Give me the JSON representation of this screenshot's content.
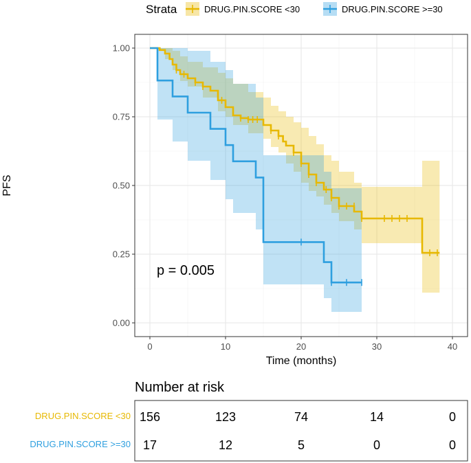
{
  "chart_data": {
    "type": "km-survival",
    "legend": {
      "title": "Strata",
      "entries": [
        {
          "label": "DRUG.PIN.SCORE <30",
          "color": "#E7B800"
        },
        {
          "label": "DRUG.PIN.SCORE >=30",
          "color": "#2E9FDF"
        }
      ]
    },
    "xlabel": "Time (months)",
    "ylabel": "PFS",
    "xlim": [
      -2,
      42
    ],
    "ylim": [
      -0.05,
      1.05
    ],
    "xticks": [
      0,
      10,
      20,
      30,
      40
    ],
    "xtick_labels": [
      "0",
      "10",
      "20",
      "30",
      "40"
    ],
    "yticks": [
      0,
      0.25,
      0.5,
      0.75,
      1.0
    ],
    "ytick_labels": [
      "0.00",
      "0.25",
      "0.50",
      "0.75",
      "1.00"
    ],
    "pvalue_text": "p = 0.005",
    "series": [
      {
        "name": "DRUG.PIN.SCORE <30",
        "color": "#E7B800",
        "steps": [
          [
            0,
            1.0
          ],
          [
            1.3,
            0.993
          ],
          [
            2,
            0.98
          ],
          [
            2.6,
            0.96
          ],
          [
            3,
            0.94
          ],
          [
            3.5,
            0.92
          ],
          [
            4,
            0.905
          ],
          [
            5,
            0.89
          ],
          [
            6,
            0.875
          ],
          [
            7,
            0.86
          ],
          [
            8,
            0.845
          ],
          [
            9,
            0.81
          ],
          [
            10,
            0.785
          ],
          [
            11,
            0.755
          ],
          [
            12,
            0.745
          ],
          [
            13,
            0.74
          ],
          [
            15,
            0.72
          ],
          [
            16,
            0.7
          ],
          [
            17,
            0.68
          ],
          [
            17.6,
            0.66
          ],
          [
            18,
            0.645
          ],
          [
            19,
            0.62
          ],
          [
            20,
            0.58
          ],
          [
            21,
            0.54
          ],
          [
            22,
            0.51
          ],
          [
            23,
            0.485
          ],
          [
            24,
            0.455
          ],
          [
            25,
            0.425
          ],
          [
            27,
            0.405
          ],
          [
            28,
            0.38
          ],
          [
            36,
            0.255
          ],
          [
            38.3,
            0.255
          ]
        ],
        "ci_steps": [
          [
            0,
            1.0,
            1.0
          ],
          [
            1,
            0.99,
            1.0
          ],
          [
            2,
            0.96,
            1.0
          ],
          [
            3,
            0.92,
            0.99
          ],
          [
            4,
            0.88,
            0.97
          ],
          [
            5,
            0.86,
            0.95
          ],
          [
            7,
            0.82,
            0.93
          ],
          [
            9,
            0.77,
            0.91
          ],
          [
            10,
            0.75,
            0.89
          ],
          [
            11,
            0.72,
            0.87
          ],
          [
            13,
            0.69,
            0.84
          ],
          [
            15,
            0.67,
            0.82
          ],
          [
            16,
            0.64,
            0.79
          ],
          [
            17,
            0.62,
            0.77
          ],
          [
            18,
            0.58,
            0.75
          ],
          [
            19,
            0.55,
            0.73
          ],
          [
            20,
            0.51,
            0.71
          ],
          [
            21,
            0.48,
            0.68
          ],
          [
            22,
            0.46,
            0.65
          ],
          [
            23,
            0.43,
            0.61
          ],
          [
            24,
            0.4,
            0.59
          ],
          [
            25,
            0.37,
            0.55
          ],
          [
            27,
            0.34,
            0.51
          ],
          [
            28,
            0.29,
            0.495
          ],
          [
            36,
            0.11,
            0.59
          ],
          [
            38.3,
            0.11,
            0.59
          ]
        ],
        "censors": [
          [
            3.5,
            0.92
          ],
          [
            4.5,
            0.905
          ],
          [
            6,
            0.875
          ],
          [
            7,
            0.86
          ],
          [
            9.5,
            0.81
          ],
          [
            12,
            0.745
          ],
          [
            13,
            0.74
          ],
          [
            13.6,
            0.74
          ],
          [
            14.2,
            0.74
          ],
          [
            16,
            0.7
          ],
          [
            17,
            0.68
          ],
          [
            19,
            0.62
          ],
          [
            20,
            0.58
          ],
          [
            21,
            0.54
          ],
          [
            22,
            0.51
          ],
          [
            23.3,
            0.485
          ],
          [
            24,
            0.455
          ],
          [
            25,
            0.425
          ],
          [
            26,
            0.425
          ],
          [
            27,
            0.425
          ],
          [
            28,
            0.38
          ],
          [
            31,
            0.38
          ],
          [
            32,
            0.38
          ],
          [
            33,
            0.38
          ],
          [
            34,
            0.38
          ],
          [
            37,
            0.255
          ],
          [
            38,
            0.255
          ]
        ]
      },
      {
        "name": "DRUG.PIN.SCORE >=30",
        "color": "#2E9FDF",
        "steps": [
          [
            0,
            1.0
          ],
          [
            1,
            0.882
          ],
          [
            3,
            0.824
          ],
          [
            5,
            0.765
          ],
          [
            8,
            0.706
          ],
          [
            10,
            0.647
          ],
          [
            11,
            0.588
          ],
          [
            14,
            0.529
          ],
          [
            15,
            0.294
          ],
          [
            23,
            0.221
          ],
          [
            24,
            0.147
          ],
          [
            28,
            0.147
          ]
        ],
        "ci_steps": [
          [
            0,
            1.0,
            1.0
          ],
          [
            1,
            0.74,
            1.0
          ],
          [
            3,
            0.66,
            1.0
          ],
          [
            5,
            0.59,
            0.99
          ],
          [
            8,
            0.52,
            0.95
          ],
          [
            10,
            0.45,
            0.92
          ],
          [
            11,
            0.4,
            0.87
          ],
          [
            14,
            0.34,
            0.82
          ],
          [
            15,
            0.14,
            0.61
          ],
          [
            23,
            0.09,
            0.55
          ],
          [
            24,
            0.04,
            0.49
          ],
          [
            28,
            0.04,
            0.49
          ]
        ],
        "censors": [
          [
            20,
            0.294
          ],
          [
            24,
            0.147
          ],
          [
            26,
            0.147
          ],
          [
            28,
            0.147
          ]
        ]
      }
    ],
    "risk_table": {
      "title": "Number at risk",
      "times": [
        0,
        10,
        20,
        30,
        40
      ],
      "rows": [
        {
          "label": "DRUG.PIN.SCORE <30",
          "color": "#E7B800",
          "values": [
            "156",
            "123",
            "74",
            "14",
            "0"
          ]
        },
        {
          "label": "DRUG.PIN.SCORE >=30",
          "color": "#2E9FDF",
          "values": [
            "17",
            "12",
            "5",
            "0",
            "0"
          ]
        }
      ]
    }
  }
}
